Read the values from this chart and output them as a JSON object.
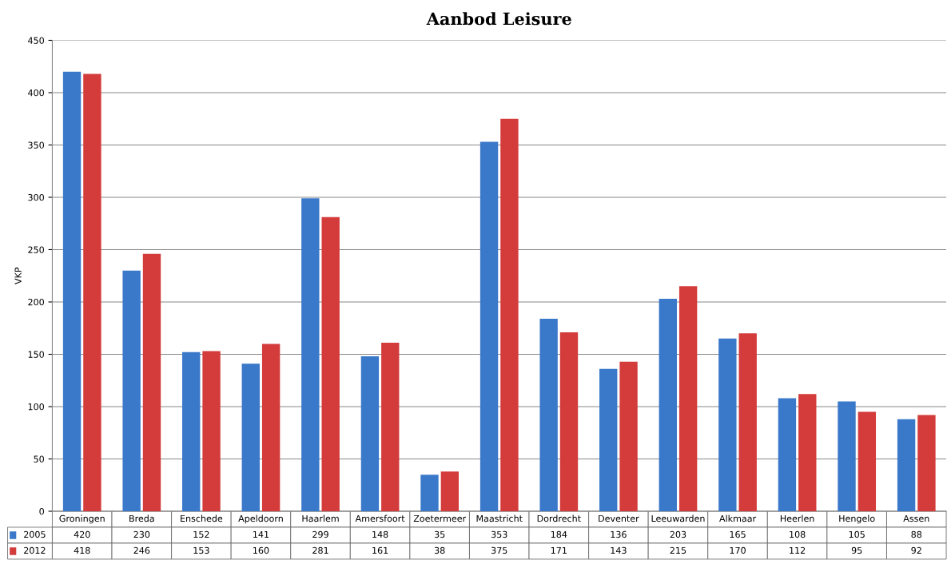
{
  "chart_data": {
    "type": "bar",
    "title": "Aanbod Leisure",
    "ylabel": "VKP",
    "categories": [
      "Groningen",
      "Breda",
      "Enschede",
      "Apeldoorn",
      "Haarlem",
      "Amersfoort",
      "Zoetermeer",
      "Maastricht",
      "Dordrecht",
      "Deventer",
      "Leeuwarden",
      "Alkmaar",
      "Heerlen",
      "Hengelo",
      "Assen"
    ],
    "series": [
      {
        "name": "2005",
        "color": "#3a78c9",
        "values": [
          420,
          230,
          152,
          141,
          299,
          148,
          35,
          353,
          184,
          136,
          203,
          165,
          108,
          105,
          88
        ]
      },
      {
        "name": "2012",
        "color": "#d43b3b",
        "values": [
          418,
          246,
          153,
          160,
          281,
          161,
          38,
          375,
          171,
          143,
          215,
          170,
          112,
          95,
          92
        ]
      }
    ],
    "ylim": [
      0,
      450
    ],
    "yticks": [
      0,
      50,
      100,
      150,
      200,
      250,
      300,
      350,
      400,
      450
    ],
    "grid": "y",
    "legend": "bottom",
    "data_labels": true
  }
}
